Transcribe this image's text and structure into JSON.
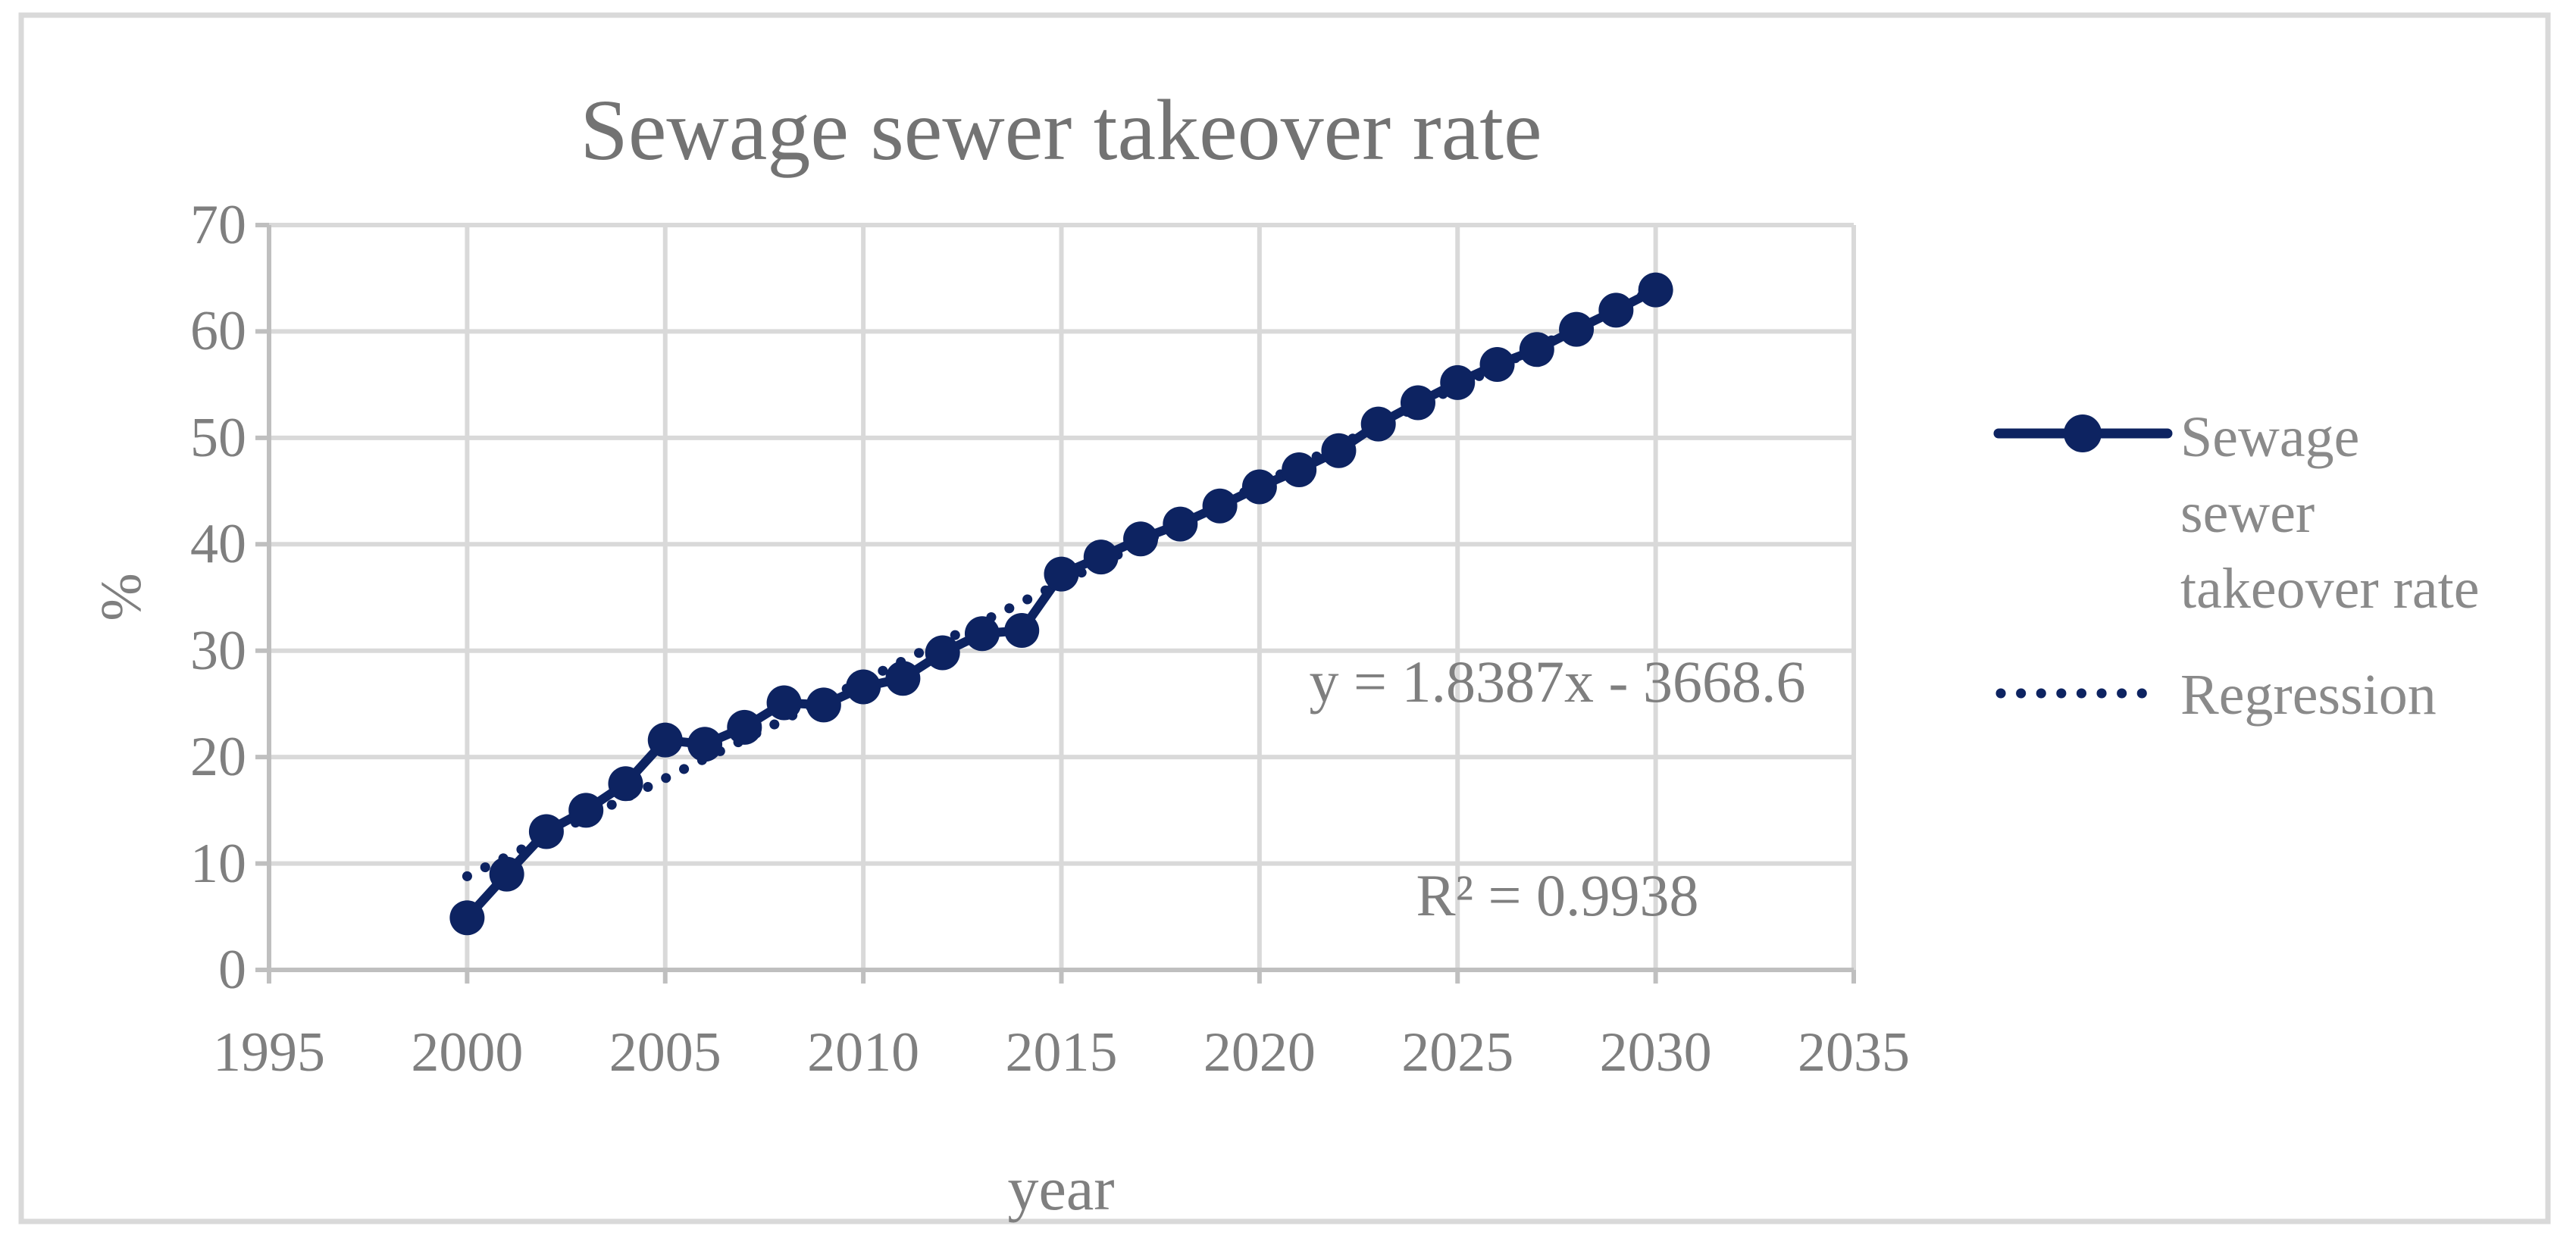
{
  "figure": {
    "title": "Sewage sewer takeover rate",
    "x_axis_label": "year",
    "y_axis_label": "%",
    "annotation": {
      "equation": "y = 1.8387x - 3668.6",
      "r_squared": "R² = 0.9938"
    },
    "legend": [
      {
        "label": "Sewage sewer takeover rate",
        "style": "solid-line-circle-marker"
      },
      {
        "label": "Regression",
        "style": "dotted-line"
      }
    ],
    "colors": {
      "series": "#0d2361",
      "gridline": "#d9d9d9",
      "axis_line": "#bfbfbf",
      "tick_text": "#7f7f7f",
      "title_text": "#737373",
      "legend_text": "#8a8a8a",
      "figure_border": "#d9d9d9",
      "background": "#ffffff"
    }
  },
  "chart_data": {
    "type": "line",
    "title": "Sewage sewer takeover rate",
    "xlabel": "year",
    "ylabel": "%",
    "xlim": [
      1995,
      2035
    ],
    "ylim": [
      0,
      70
    ],
    "x_ticks": [
      1995,
      2000,
      2005,
      2010,
      2015,
      2020,
      2025,
      2030,
      2035
    ],
    "y_ticks": [
      0,
      10,
      20,
      30,
      40,
      50,
      60,
      70
    ],
    "grid": true,
    "legend_position": "right",
    "annotation": "y = 1.8387x - 3668.6\nR² = 0.9938",
    "series": [
      {
        "name": "Sewage sewer takeover rate",
        "style": "solid-line-circle-marker",
        "x": [
          2000,
          2001,
          2002,
          2003,
          2004,
          2005,
          2006,
          2007,
          2008,
          2009,
          2010,
          2011,
          2012,
          2013,
          2014,
          2015,
          2016,
          2017,
          2018,
          2019,
          2020,
          2021,
          2022,
          2023,
          2024,
          2025,
          2026,
          2027,
          2028,
          2029,
          2030
        ],
        "y": [
          4.9,
          9.0,
          13.0,
          15.0,
          17.5,
          21.6,
          21.2,
          22.8,
          25.1,
          24.9,
          26.6,
          27.4,
          29.8,
          31.6,
          31.9,
          37.2,
          38.8,
          40.5,
          41.9,
          43.6,
          45.4,
          47.0,
          48.8,
          51.3,
          53.3,
          55.2,
          56.9,
          58.3,
          60.2,
          62.0,
          63.9
        ]
      },
      {
        "name": "Regression",
        "style": "dotted-trendline",
        "equation": "y = 1.8387x - 3668.6",
        "r2": 0.9938,
        "x": [
          2000,
          2030
        ],
        "y": [
          8.8,
          64.0
        ]
      }
    ]
  }
}
